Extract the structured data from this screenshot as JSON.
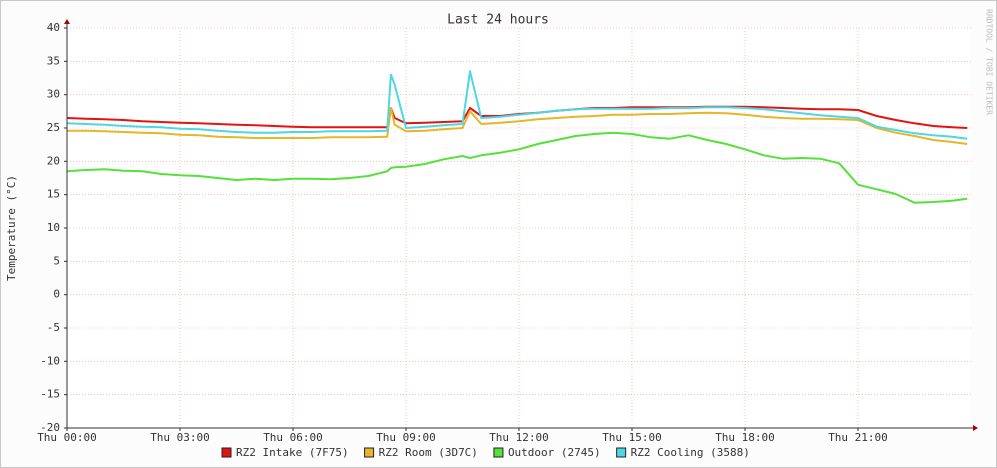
{
  "chart_data": {
    "type": "line",
    "title": "Last 24 hours",
    "y_label": "Temperature (°C)",
    "watermark": "RRDTOOL / TOBI OETIKER",
    "x": [
      0,
      0.5,
      1,
      1.5,
      2,
      2.5,
      3,
      3.5,
      4,
      4.5,
      5,
      5.5,
      6,
      6.5,
      7,
      7.5,
      8,
      8.5,
      8.6,
      8.7,
      9,
      9.5,
      10,
      10.5,
      10.7,
      11,
      11.5,
      12,
      12.5,
      13,
      13.5,
      14,
      14.5,
      15,
      15.5,
      16,
      16.5,
      17,
      17.5,
      18,
      18.5,
      19,
      19.5,
      20,
      20.5,
      21,
      21.5,
      22,
      22.5,
      23,
      23.5,
      23.9
    ],
    "xlim": [
      0,
      24
    ],
    "xticks": [
      {
        "value": 0,
        "label": "Thu 00:00"
      },
      {
        "value": 3,
        "label": "Thu 03:00"
      },
      {
        "value": 6,
        "label": "Thu 06:00"
      },
      {
        "value": 9,
        "label": "Thu 09:00"
      },
      {
        "value": 12,
        "label": "Thu 12:00"
      },
      {
        "value": 15,
        "label": "Thu 15:00"
      },
      {
        "value": 18,
        "label": "Thu 18:00"
      },
      {
        "value": 21,
        "label": "Thu 21:00"
      }
    ],
    "ylim": [
      -20,
      40
    ],
    "yticks": [
      -20,
      -15,
      -10,
      -5,
      0,
      5,
      10,
      15,
      20,
      25,
      30,
      35,
      40
    ],
    "grid": true,
    "series": [
      {
        "name": "RZ2 Intake (7F75)",
        "color": "#e3140f",
        "values": [
          26.5,
          26.4,
          26.3,
          26.2,
          26.0,
          25.9,
          25.8,
          25.7,
          25.6,
          25.5,
          25.4,
          25.3,
          25.2,
          25.1,
          25.1,
          25.1,
          25.1,
          25.1,
          28.0,
          26.5,
          25.7,
          25.8,
          25.9,
          26.0,
          28.0,
          26.8,
          26.8,
          27.1,
          27.3,
          27.6,
          27.8,
          28.0,
          28.0,
          28.1,
          28.1,
          28.1,
          28.1,
          28.2,
          28.2,
          28.2,
          28.1,
          28.0,
          27.9,
          27.8,
          27.8,
          27.7,
          26.8,
          26.2,
          25.7,
          25.3,
          25.1,
          25.0
        ]
      },
      {
        "name": "RZ2 Room (3D7C)",
        "color": "#e6b52a",
        "values": [
          24.6,
          24.6,
          24.5,
          24.4,
          24.3,
          24.2,
          24.0,
          23.9,
          23.7,
          23.6,
          23.5,
          23.5,
          23.5,
          23.5,
          23.6,
          23.6,
          23.6,
          23.7,
          28.0,
          25.5,
          24.5,
          24.6,
          24.8,
          25.0,
          27.5,
          25.6,
          25.8,
          26.0,
          26.3,
          26.5,
          26.7,
          26.8,
          27.0,
          27.0,
          27.1,
          27.1,
          27.2,
          27.3,
          27.2,
          27.0,
          26.7,
          26.5,
          26.4,
          26.4,
          26.3,
          26.2,
          25.0,
          24.3,
          23.8,
          23.2,
          22.9,
          22.6
        ]
      },
      {
        "name": "Outdoor (2745)",
        "color": "#55e03a",
        "values": [
          18.5,
          18.7,
          18.8,
          18.6,
          18.5,
          18.1,
          17.9,
          17.8,
          17.5,
          17.2,
          17.4,
          17.2,
          17.4,
          17.4,
          17.3,
          17.5,
          17.8,
          18.5,
          19.0,
          19.1,
          19.2,
          19.6,
          20.3,
          20.8,
          20.5,
          20.9,
          21.3,
          21.8,
          22.6,
          23.2,
          23.8,
          24.1,
          24.3,
          24.1,
          23.6,
          23.4,
          23.9,
          23.2,
          22.6,
          21.8,
          20.9,
          20.4,
          20.5,
          20.4,
          19.7,
          16.5,
          15.8,
          15.1,
          13.8,
          13.9,
          14.1,
          14.4
        ]
      },
      {
        "name": "RZ2 Cooling (3588)",
        "color": "#4dd6e3",
        "values": [
          25.7,
          25.6,
          25.5,
          25.3,
          25.2,
          25.1,
          24.9,
          24.8,
          24.6,
          24.4,
          24.3,
          24.3,
          24.4,
          24.4,
          24.5,
          24.5,
          24.5,
          24.6,
          33.0,
          31.5,
          25.0,
          25.2,
          25.4,
          25.6,
          33.5,
          26.5,
          26.7,
          27.0,
          27.3,
          27.6,
          27.8,
          27.9,
          27.9,
          27.9,
          27.9,
          28.0,
          28.0,
          28.1,
          28.1,
          28.0,
          27.8,
          27.5,
          27.2,
          26.9,
          26.7,
          26.5,
          25.2,
          24.7,
          24.2,
          23.9,
          23.7,
          23.4
        ]
      }
    ]
  }
}
